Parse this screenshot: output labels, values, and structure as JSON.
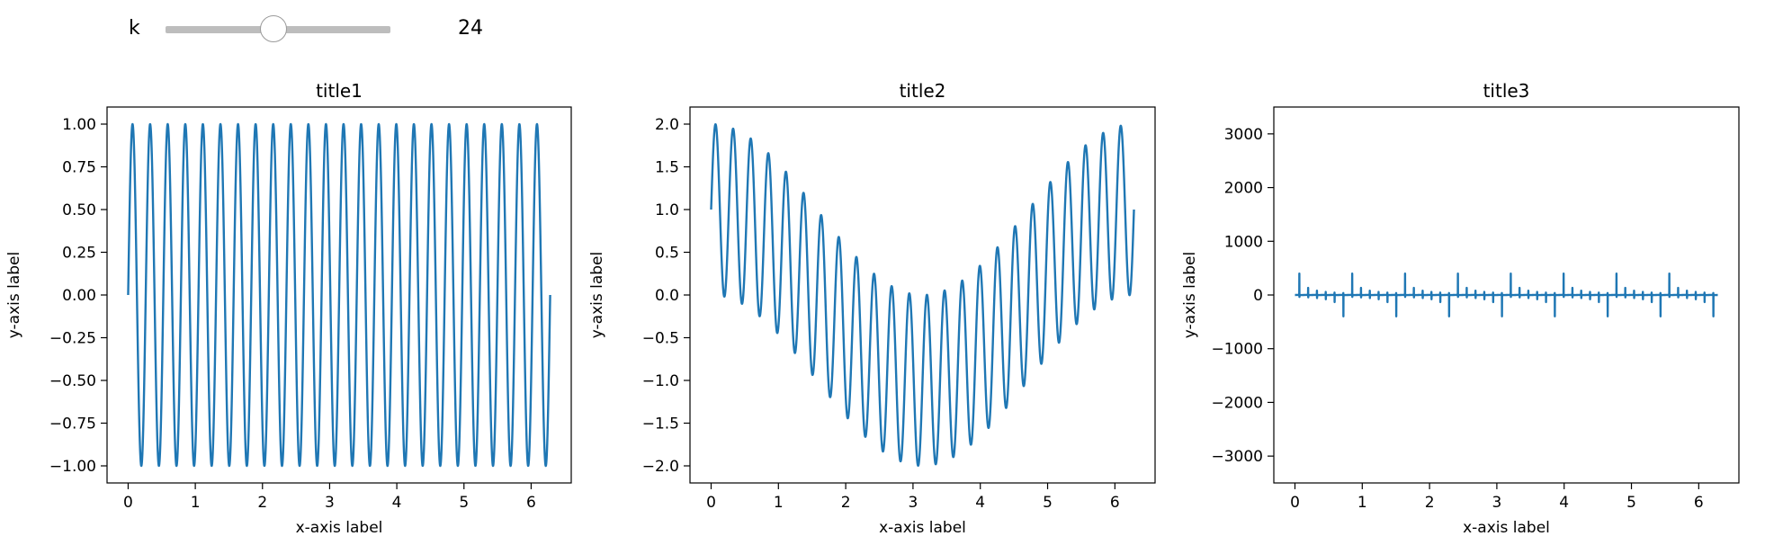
{
  "slider": {
    "label": "k",
    "value": "24",
    "position": 0.48
  },
  "colors": {
    "line": "#1f77b4",
    "axes": "#000000",
    "slider_track": "#bdbdbd"
  },
  "chart_data": [
    {
      "type": "line",
      "title": "title1",
      "xlabel": "x-axis label",
      "ylabel": "y-axis label",
      "formula": "sin(24x)",
      "xlim": [
        -0.314,
        6.597
      ],
      "ylim": [
        -1.1,
        1.1
      ],
      "xticks": [
        0,
        1,
        2,
        3,
        4,
        5,
        6
      ],
      "yticks": [
        1.0,
        0.75,
        0.5,
        0.25,
        0.0,
        -0.25,
        -0.5,
        -0.75,
        -1.0
      ],
      "ytick_labels": [
        "1.00",
        "0.75",
        "0.50",
        "0.25",
        "0.00",
        "−0.25",
        "−0.50",
        "−0.75",
        "−1.00"
      ],
      "grid": false
    },
    {
      "type": "line",
      "title": "title2",
      "xlabel": "x-axis label",
      "ylabel": "y-axis label",
      "formula": "sin(24x) + cos(x)",
      "xlim": [
        -0.314,
        6.597
      ],
      "ylim": [
        -2.2,
        2.2
      ],
      "xticks": [
        0,
        1,
        2,
        3,
        4,
        5,
        6
      ],
      "yticks": [
        2.0,
        1.5,
        1.0,
        0.5,
        0.0,
        -0.5,
        -1.0,
        -1.5,
        -2.0
      ],
      "ytick_labels": [
        "2.0",
        "1.5",
        "1.0",
        "0.5",
        "0.0",
        "−0.5",
        "−1.0",
        "−1.5",
        "−2.0"
      ],
      "grid": false
    },
    {
      "type": "line",
      "title": "title3",
      "xlabel": "x-axis label",
      "ylabel": "y-axis label",
      "formula": "tan(24x)",
      "xlim": [
        -0.314,
        6.597
      ],
      "ylim": [
        -3500,
        3500
      ],
      "xticks": [
        0,
        1,
        2,
        3,
        4,
        5,
        6
      ],
      "yticks": [
        3000,
        2000,
        1000,
        0,
        -1000,
        -2000,
        -3000
      ],
      "ytick_labels": [
        "3000",
        "2000",
        "1000",
        "0",
        "−1000",
        "−2000",
        "−3000"
      ],
      "grid": false
    }
  ]
}
